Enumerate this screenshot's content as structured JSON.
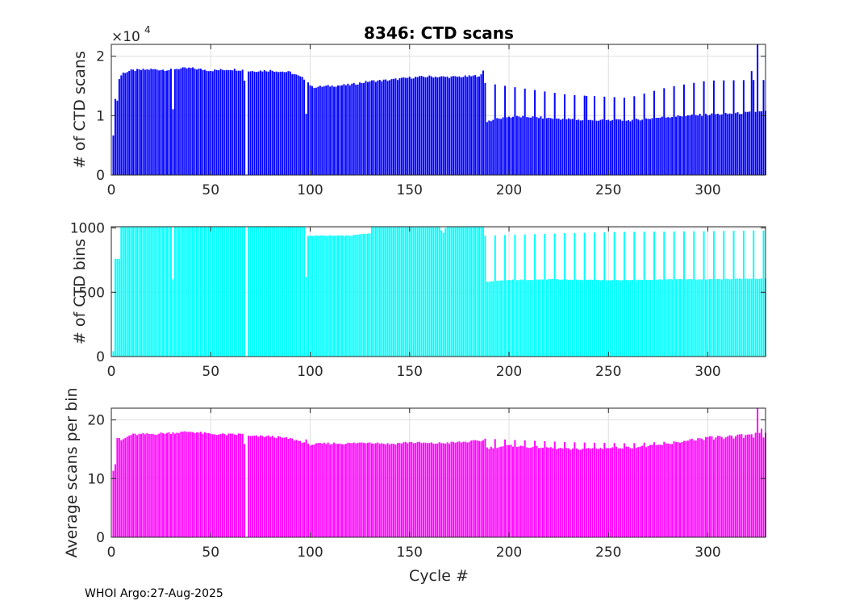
{
  "chart_data": {
    "title": "8346: CTD scans",
    "xlabel": "Cycle #",
    "footer": "WHOI Argo:27-Aug-2025",
    "xlim": [
      0,
      329
    ],
    "xticks": [
      0,
      50,
      100,
      150,
      200,
      250,
      300
    ],
    "xtick_labels": [
      "0",
      "50",
      "100",
      "150",
      "200",
      "250",
      "300"
    ],
    "panels": [
      {
        "type": "bar",
        "name": "ctd-scans",
        "ylabel": "# of CTD scans",
        "color": "#0000ff",
        "ylim": [
          0,
          22000
        ],
        "yticks": [
          0,
          10000,
          20000
        ],
        "ytick_labels": [
          "0",
          "1",
          "2"
        ],
        "exponent_base": "×10",
        "exponent_power": "4",
        "profile": [
          [
            1,
            6500
          ],
          [
            2,
            13000
          ],
          [
            3,
            12500
          ],
          [
            4,
            16200
          ],
          [
            5,
            16800
          ],
          [
            6,
            17200
          ],
          [
            10,
            17600
          ],
          [
            20,
            17800
          ],
          [
            30,
            17700
          ],
          [
            31,
            11000
          ],
          [
            32,
            17900
          ],
          [
            40,
            18000
          ],
          [
            50,
            17600
          ],
          [
            60,
            17800
          ],
          [
            66,
            17700
          ],
          [
            67,
            16000
          ],
          [
            68,
            0
          ],
          [
            69,
            17500
          ],
          [
            80,
            17600
          ],
          [
            90,
            17300
          ],
          [
            97,
            16200
          ],
          [
            98,
            10500
          ],
          [
            99,
            15600
          ],
          [
            101,
            14800
          ],
          [
            110,
            15000
          ],
          [
            120,
            15200
          ],
          [
            130,
            15800
          ],
          [
            140,
            16000
          ],
          [
            150,
            16400
          ],
          [
            160,
            16600
          ],
          [
            170,
            16500
          ],
          [
            180,
            16600
          ],
          [
            186,
            16800
          ],
          [
            187,
            17500
          ],
          [
            188,
            9000
          ],
          [
            200,
            9800
          ],
          [
            210,
            9800
          ],
          [
            220,
            9600
          ],
          [
            230,
            9400
          ],
          [
            240,
            9200
          ],
          [
            250,
            9200
          ],
          [
            260,
            9200
          ],
          [
            270,
            9500
          ],
          [
            280,
            9800
          ],
          [
            290,
            10000
          ],
          [
            300,
            10200
          ],
          [
            310,
            10300
          ],
          [
            320,
            10500
          ],
          [
            329,
            10700
          ]
        ],
        "spike_start": 188,
        "spike_step": 5,
        "spike_profile": [
          [
            188,
            15500
          ],
          [
            230,
            13500
          ],
          [
            260,
            13000
          ],
          [
            280,
            14800
          ],
          [
            300,
            15900
          ],
          [
            322,
            16000
          ]
        ],
        "extra_peaks": [
          [
            325,
            22000
          ],
          [
            322,
            17500
          ],
          [
            239,
            13300
          ]
        ]
      },
      {
        "type": "bar",
        "name": "ctd-bins",
        "ylabel": "# of CTD bins",
        "color": "#00ffff",
        "ylim": [
          0,
          1010
        ],
        "yticks": [
          0,
          500,
          1000
        ],
        "ytick_labels": [
          "0",
          "500",
          "1000"
        ],
        "profile": [
          [
            1,
            40
          ],
          [
            2,
            760
          ],
          [
            4,
            760
          ],
          [
            5,
            1010
          ],
          [
            30,
            1010
          ],
          [
            31,
            600
          ],
          [
            32,
            1010
          ],
          [
            66,
            1010
          ],
          [
            67,
            1010
          ],
          [
            68,
            0
          ],
          [
            69,
            1010
          ],
          [
            97,
            1010
          ],
          [
            98,
            620
          ],
          [
            99,
            940
          ],
          [
            110,
            940
          ],
          [
            120,
            940
          ],
          [
            125,
            950
          ],
          [
            130,
            960
          ],
          [
            131,
            1010
          ],
          [
            165,
            1010
          ],
          [
            166,
            980
          ],
          [
            167,
            960
          ],
          [
            168,
            1000
          ],
          [
            169,
            1010
          ],
          [
            186,
            1010
          ],
          [
            187,
            1010
          ],
          [
            188,
            580
          ],
          [
            200,
            595
          ],
          [
            220,
            600
          ],
          [
            240,
            595
          ],
          [
            260,
            595
          ],
          [
            280,
            600
          ],
          [
            300,
            600
          ],
          [
            320,
            605
          ],
          [
            329,
            605
          ]
        ],
        "spike_start": 188,
        "spike_step": 5,
        "spike_profile": [
          [
            188,
            940
          ],
          [
            230,
            960
          ],
          [
            260,
            970
          ],
          [
            300,
            975
          ],
          [
            322,
            980
          ]
        ],
        "extra_peaks": []
      },
      {
        "type": "bar",
        "name": "avg-scans-per-bin",
        "ylabel": "Average scans per bin",
        "color": "#ff00ff",
        "ylim": [
          0,
          22
        ],
        "yticks": [
          0,
          10,
          20
        ],
        "ytick_labels": [
          "0",
          "10",
          "20"
        ],
        "profile": [
          [
            1,
            11.5
          ],
          [
            2,
            12.5
          ],
          [
            3,
            17
          ],
          [
            5,
            16.5
          ],
          [
            10,
            17.5
          ],
          [
            20,
            17.6
          ],
          [
            30,
            17.8
          ],
          [
            40,
            18
          ],
          [
            50,
            17.6
          ],
          [
            60,
            17.5
          ],
          [
            66,
            17.6
          ],
          [
            67,
            16
          ],
          [
            68,
            0
          ],
          [
            69,
            17.2
          ],
          [
            80,
            17.2
          ],
          [
            90,
            16.8
          ],
          [
            97,
            16.2
          ],
          [
            98,
            16.5
          ],
          [
            99,
            15.8
          ],
          [
            110,
            16
          ],
          [
            120,
            16
          ],
          [
            130,
            16.2
          ],
          [
            140,
            15.9
          ],
          [
            150,
            16.2
          ],
          [
            160,
            16
          ],
          [
            170,
            16.1
          ],
          [
            180,
            16.3
          ],
          [
            187,
            16.5
          ],
          [
            188,
            15.2
          ],
          [
            200,
            15.6
          ],
          [
            210,
            15.4
          ],
          [
            220,
            15.3
          ],
          [
            230,
            15
          ],
          [
            240,
            15.1
          ],
          [
            250,
            15.2
          ],
          [
            260,
            15.3
          ],
          [
            270,
            15.5
          ],
          [
            280,
            15.9
          ],
          [
            290,
            16.5
          ],
          [
            300,
            17
          ],
          [
            310,
            17.2
          ],
          [
            320,
            17.5
          ],
          [
            329,
            18
          ]
        ],
        "spike_start": 188,
        "spike_step": 5,
        "spike_profile": [
          [
            188,
            16.8
          ],
          [
            230,
            16.2
          ],
          [
            260,
            16
          ],
          [
            300,
            16.6
          ],
          [
            322,
            17
          ]
        ],
        "extra_peaks": [
          [
            325,
            22
          ],
          [
            327,
            18.5
          ]
        ]
      }
    ]
  }
}
